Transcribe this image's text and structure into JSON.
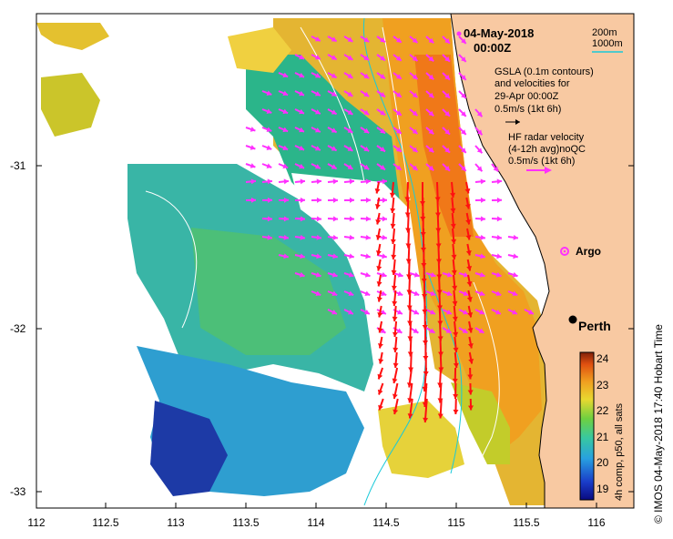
{
  "title": {
    "date": "04-May-2018",
    "time": "00:00Z"
  },
  "depth_legend": {
    "d200": "200m",
    "d1000": "1000m",
    "color_200": "#000000",
    "color_1000": "#19c9d9"
  },
  "gsla_legend": {
    "line1": "GSLA (0.1m contours)",
    "line2": "and velocities for",
    "line3": "29-Apr 00:00Z",
    "line4": "0.5m/s (1kt 6h)"
  },
  "hf_legend": {
    "line1": "HF radar velocity",
    "line2": "(4-12h avg)noQC",
    "line3": "0.5m/s (1kt 6h)"
  },
  "labels": {
    "argo": "Argo",
    "perth": "Perth"
  },
  "y_ticks": [
    "-31",
    "-32",
    "-33"
  ],
  "x_ticks": [
    "112",
    "112.5",
    "113",
    "113.5",
    "114",
    "114.5",
    "115",
    "115.5",
    "116"
  ],
  "colorbar": {
    "ticks": [
      "24",
      "23",
      "22",
      "21",
      "20",
      "19"
    ],
    "label": "4h comp, p50, all sats"
  },
  "footer": "© IMOS 04-May-2018 17:40 Hobart Time",
  "colors": {
    "land": "#f8c9a2",
    "arrow_hf": "#ff30ff",
    "arrow_gsla": "#ff1010"
  }
}
